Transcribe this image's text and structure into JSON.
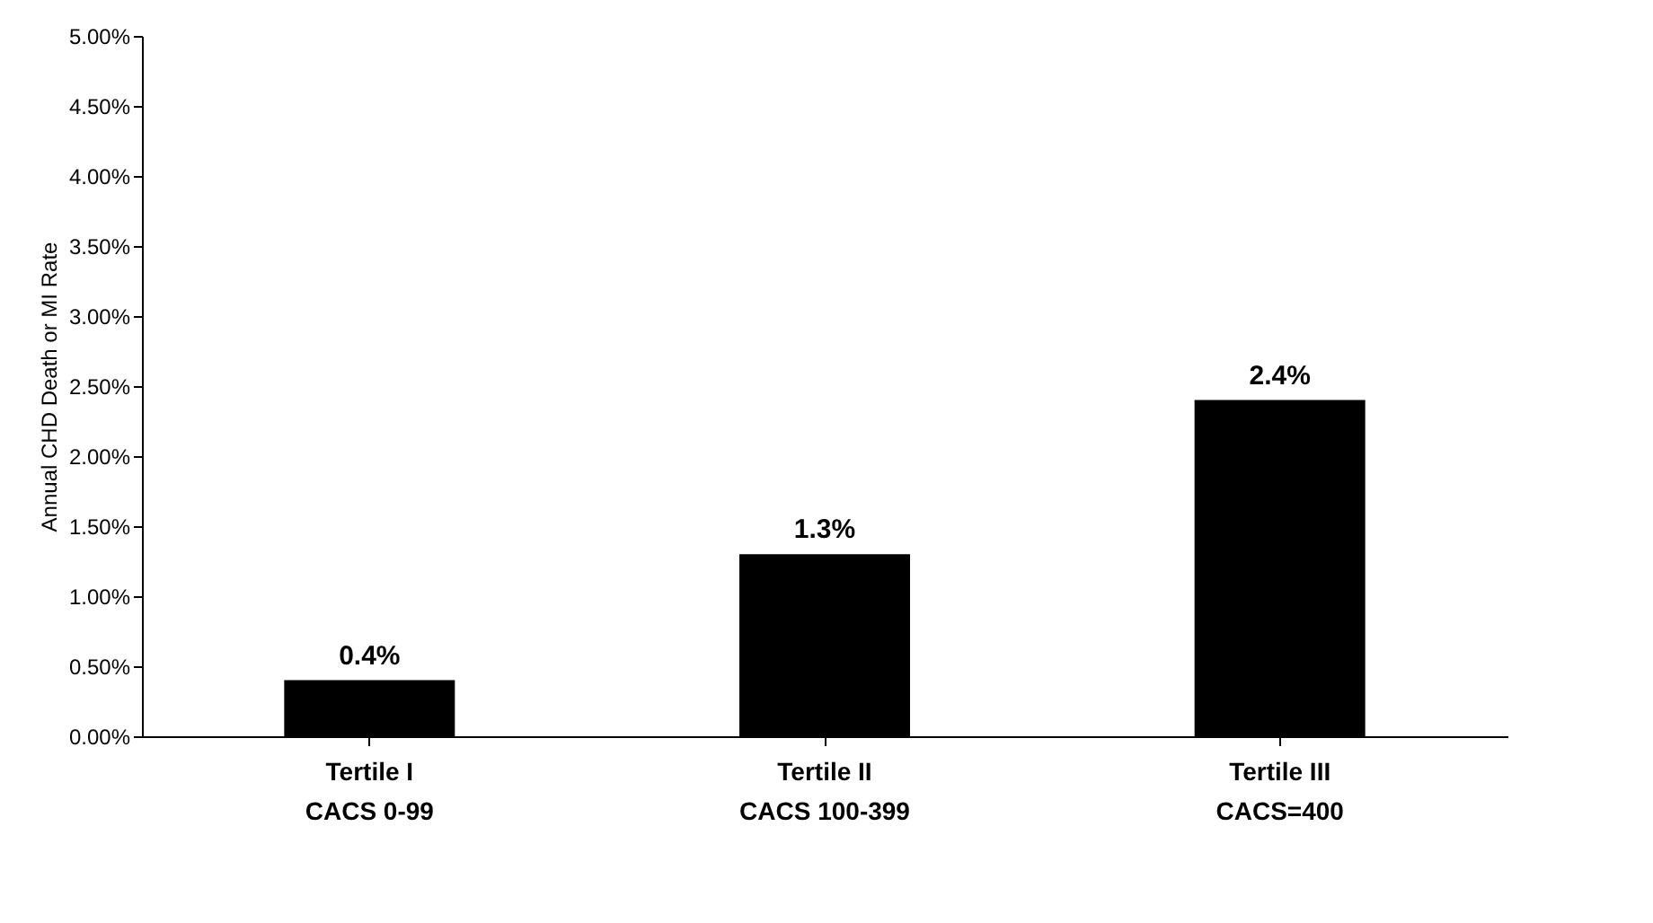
{
  "chart_data": {
    "type": "bar",
    "ylabel": "Annual CHD Death or MI Rate",
    "categories": [
      "Tertile I\nCACS 0-99",
      "Tertile II\nCACS 100-399",
      "Tertile III\nCACS=400"
    ],
    "values": [
      0.4,
      1.3,
      2.4
    ],
    "color": "#000000",
    "data_labels": true,
    "value_labels": [
      "0.4%",
      "1.3%",
      "2.4%"
    ],
    "ylim": [
      0,
      5
    ],
    "yticks": [
      {
        "value": 0,
        "label": "0.00%"
      },
      {
        "value": 0.5,
        "label": "0.50%"
      },
      {
        "value": 1,
        "label": "1.00%"
      },
      {
        "value": 1.5,
        "label": "1.50%"
      },
      {
        "value": 2,
        "label": "2.00%"
      },
      {
        "value": 2.5,
        "label": "2.50%"
      },
      {
        "value": 3,
        "label": "3.00%"
      },
      {
        "value": 3.5,
        "label": "3.50%"
      },
      {
        "value": 4,
        "label": "4.00%"
      },
      {
        "value": 4.5,
        "label": "4.50%"
      },
      {
        "value": 5,
        "label": "5.00%"
      }
    ],
    "grid": false
  }
}
